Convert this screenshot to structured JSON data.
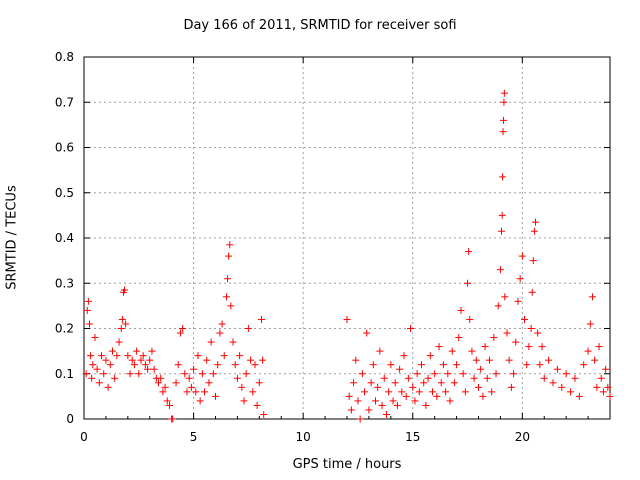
{
  "chart_data": {
    "type": "scatter",
    "title": "Day 166 of 2011, SRMTID for receiver sofi",
    "xlabel": "GPS time / hours",
    "ylabel": "SRMTID / TECUs",
    "xlim": [
      0,
      24
    ],
    "ylim": [
      0,
      0.8
    ],
    "xticks": [
      0,
      5,
      10,
      15,
      20
    ],
    "yticks": [
      0,
      0.1,
      0.2,
      0.3,
      0.4,
      0.5,
      0.6,
      0.7,
      0.8
    ],
    "ytick_labels": [
      "0",
      "0.1",
      "0.2",
      "0.3",
      "0.4",
      "0.5",
      "0.6",
      "0.7",
      "0.8"
    ],
    "grid": true,
    "marker": "+",
    "series_color": "#ff0000",
    "gap_hours": [
      8.3,
      11.8
    ],
    "series": [
      {
        "name": "SRMTID",
        "points": [
          [
            0.1,
            0.1
          ],
          [
            0.15,
            0.24
          ],
          [
            0.2,
            0.26
          ],
          [
            0.25,
            0.21
          ],
          [
            0.3,
            0.14
          ],
          [
            0.35,
            0.09
          ],
          [
            0.4,
            0.12
          ],
          [
            0.5,
            0.18
          ],
          [
            0.6,
            0.11
          ],
          [
            0.7,
            0.08
          ],
          [
            0.8,
            0.14
          ],
          [
            0.9,
            0.1
          ],
          [
            1.0,
            0.13
          ],
          [
            1.1,
            0.07
          ],
          [
            1.2,
            0.12
          ],
          [
            1.3,
            0.15
          ],
          [
            1.4,
            0.09
          ],
          [
            1.5,
            0.14
          ],
          [
            1.6,
            0.17
          ],
          [
            1.7,
            0.2
          ],
          [
            1.75,
            0.22
          ],
          [
            1.8,
            0.28
          ],
          [
            1.85,
            0.285
          ],
          [
            1.9,
            0.21
          ],
          [
            2.0,
            0.14
          ],
          [
            2.1,
            0.1
          ],
          [
            2.2,
            0.13
          ],
          [
            2.3,
            0.12
          ],
          [
            2.4,
            0.15
          ],
          [
            2.5,
            0.1
          ],
          [
            2.6,
            0.13
          ],
          [
            2.7,
            0.14
          ],
          [
            2.8,
            0.12
          ],
          [
            2.9,
            0.11
          ],
          [
            3.0,
            0.13
          ],
          [
            3.1,
            0.15
          ],
          [
            3.2,
            0.11
          ],
          [
            3.3,
            0.09
          ],
          [
            3.4,
            0.08
          ],
          [
            3.5,
            0.09
          ],
          [
            3.6,
            0.06
          ],
          [
            3.7,
            0.07
          ],
          [
            3.8,
            0.04
          ],
          [
            3.9,
            0.03
          ],
          [
            4.0,
            0.0
          ],
          [
            4.05,
            0.0
          ],
          [
            4.2,
            0.08
          ],
          [
            4.3,
            0.12
          ],
          [
            4.4,
            0.19
          ],
          [
            4.5,
            0.2
          ],
          [
            4.6,
            0.1
          ],
          [
            4.7,
            0.06
          ],
          [
            4.8,
            0.09
          ],
          [
            4.9,
            0.07
          ],
          [
            5.0,
            0.11
          ],
          [
            5.1,
            0.06
          ],
          [
            5.2,
            0.14
          ],
          [
            5.3,
            0.04
          ],
          [
            5.4,
            0.1
          ],
          [
            5.5,
            0.06
          ],
          [
            5.6,
            0.13
          ],
          [
            5.7,
            0.08
          ],
          [
            5.8,
            0.17
          ],
          [
            5.9,
            0.1
          ],
          [
            6.0,
            0.05
          ],
          [
            6.1,
            0.12
          ],
          [
            6.2,
            0.19
          ],
          [
            6.3,
            0.21
          ],
          [
            6.4,
            0.14
          ],
          [
            6.5,
            0.27
          ],
          [
            6.55,
            0.31
          ],
          [
            6.6,
            0.36
          ],
          [
            6.65,
            0.385
          ],
          [
            6.7,
            0.25
          ],
          [
            6.8,
            0.17
          ],
          [
            6.9,
            0.12
          ],
          [
            7.0,
            0.09
          ],
          [
            7.1,
            0.14
          ],
          [
            7.2,
            0.07
          ],
          [
            7.3,
            0.04
          ],
          [
            7.4,
            0.1
          ],
          [
            7.5,
            0.2
          ],
          [
            7.6,
            0.13
          ],
          [
            7.7,
            0.06
          ],
          [
            7.8,
            0.12
          ],
          [
            7.9,
            0.03
          ],
          [
            8.0,
            0.08
          ],
          [
            8.1,
            0.22
          ],
          [
            8.15,
            0.13
          ],
          [
            8.2,
            0.01
          ],
          [
            12.0,
            0.22
          ],
          [
            12.1,
            0.05
          ],
          [
            12.2,
            0.02
          ],
          [
            12.3,
            0.08
          ],
          [
            12.4,
            0.13
          ],
          [
            12.5,
            0.04
          ],
          [
            12.6,
            0.0
          ],
          [
            12.7,
            0.1
          ],
          [
            12.8,
            0.06
          ],
          [
            12.9,
            0.19
          ],
          [
            13.0,
            0.02
          ],
          [
            13.1,
            0.08
          ],
          [
            13.2,
            0.12
          ],
          [
            13.3,
            0.04
          ],
          [
            13.4,
            0.07
          ],
          [
            13.5,
            0.15
          ],
          [
            13.6,
            0.03
          ],
          [
            13.7,
            0.09
          ],
          [
            13.8,
            0.01
          ],
          [
            13.9,
            0.06
          ],
          [
            14.0,
            0.12
          ],
          [
            14.1,
            0.04
          ],
          [
            14.2,
            0.08
          ],
          [
            14.3,
            0.03
          ],
          [
            14.4,
            0.11
          ],
          [
            14.5,
            0.06
          ],
          [
            14.6,
            0.14
          ],
          [
            14.7,
            0.05
          ],
          [
            14.8,
            0.09
          ],
          [
            14.9,
            0.2
          ],
          [
            15.0,
            0.07
          ],
          [
            15.1,
            0.04
          ],
          [
            15.2,
            0.1
          ],
          [
            15.3,
            0.06
          ],
          [
            15.4,
            0.12
          ],
          [
            15.5,
            0.08
          ],
          [
            15.6,
            0.03
          ],
          [
            15.7,
            0.09
          ],
          [
            15.8,
            0.14
          ],
          [
            15.9,
            0.06
          ],
          [
            16.0,
            0.1
          ],
          [
            16.1,
            0.05
          ],
          [
            16.2,
            0.16
          ],
          [
            16.3,
            0.08
          ],
          [
            16.4,
            0.12
          ],
          [
            16.5,
            0.06
          ],
          [
            16.6,
            0.1
          ],
          [
            16.7,
            0.04
          ],
          [
            16.8,
            0.15
          ],
          [
            16.9,
            0.08
          ],
          [
            17.0,
            0.12
          ],
          [
            17.1,
            0.18
          ],
          [
            17.2,
            0.24
          ],
          [
            17.3,
            0.1
          ],
          [
            17.4,
            0.06
          ],
          [
            17.5,
            0.3
          ],
          [
            17.55,
            0.37
          ],
          [
            17.6,
            0.22
          ],
          [
            17.7,
            0.15
          ],
          [
            17.8,
            0.09
          ],
          [
            17.9,
            0.13
          ],
          [
            18.0,
            0.07
          ],
          [
            18.1,
            0.11
          ],
          [
            18.2,
            0.05
          ],
          [
            18.3,
            0.16
          ],
          [
            18.4,
            0.09
          ],
          [
            18.5,
            0.13
          ],
          [
            18.6,
            0.06
          ],
          [
            18.7,
            0.18
          ],
          [
            18.8,
            0.1
          ],
          [
            18.9,
            0.25
          ],
          [
            19.0,
            0.33
          ],
          [
            19.05,
            0.415
          ],
          [
            19.08,
            0.45
          ],
          [
            19.1,
            0.535
          ],
          [
            19.12,
            0.635
          ],
          [
            19.14,
            0.66
          ],
          [
            19.16,
            0.7
          ],
          [
            19.18,
            0.72
          ],
          [
            19.2,
            0.27
          ],
          [
            19.3,
            0.19
          ],
          [
            19.4,
            0.13
          ],
          [
            19.5,
            0.07
          ],
          [
            19.6,
            0.1
          ],
          [
            19.7,
            0.17
          ],
          [
            19.8,
            0.26
          ],
          [
            19.9,
            0.31
          ],
          [
            20.0,
            0.36
          ],
          [
            20.1,
            0.22
          ],
          [
            20.2,
            0.12
          ],
          [
            20.3,
            0.16
          ],
          [
            20.4,
            0.2
          ],
          [
            20.45,
            0.28
          ],
          [
            20.5,
            0.35
          ],
          [
            20.55,
            0.415
          ],
          [
            20.6,
            0.435
          ],
          [
            20.7,
            0.19
          ],
          [
            20.8,
            0.12
          ],
          [
            20.9,
            0.16
          ],
          [
            21.0,
            0.09
          ],
          [
            21.2,
            0.13
          ],
          [
            21.4,
            0.08
          ],
          [
            21.6,
            0.11
          ],
          [
            21.8,
            0.07
          ],
          [
            22.0,
            0.1
          ],
          [
            22.2,
            0.06
          ],
          [
            22.4,
            0.09
          ],
          [
            22.6,
            0.05
          ],
          [
            22.8,
            0.12
          ],
          [
            23.0,
            0.15
          ],
          [
            23.1,
            0.21
          ],
          [
            23.2,
            0.27
          ],
          [
            23.3,
            0.13
          ],
          [
            23.4,
            0.07
          ],
          [
            23.5,
            0.16
          ],
          [
            23.6,
            0.09
          ],
          [
            23.7,
            0.06
          ],
          [
            23.8,
            0.11
          ],
          [
            23.9,
            0.07
          ],
          [
            24.0,
            0.05
          ]
        ]
      }
    ]
  }
}
